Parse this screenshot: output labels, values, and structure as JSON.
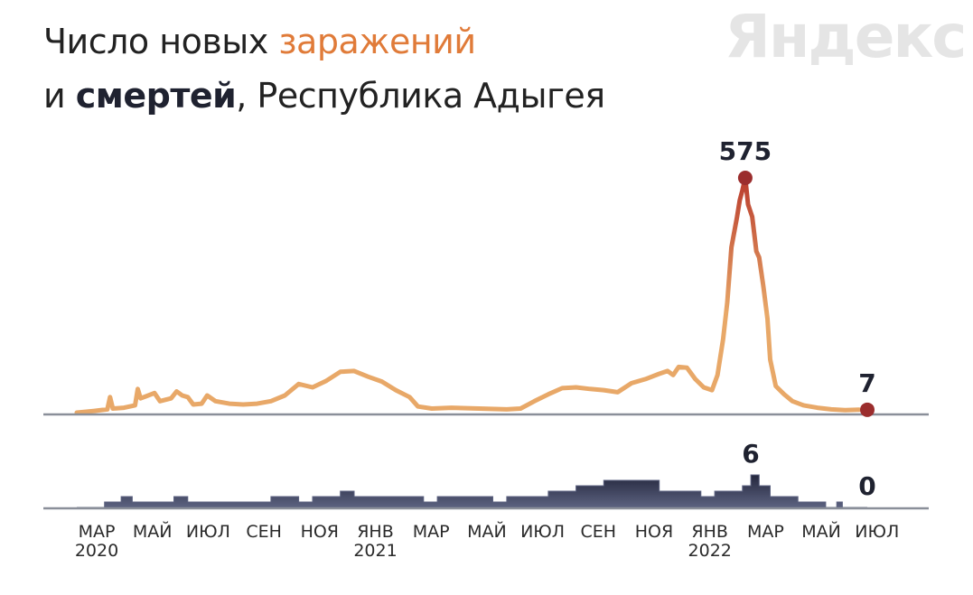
{
  "header": {
    "line1_prefix": "Число новых ",
    "line1_accent": "заражений",
    "line2_prefix": "и ",
    "line2_bold": "смертей",
    "line2_suffix": ", Республика Адыгея"
  },
  "logo": {
    "text": "Яндекс"
  },
  "colors": {
    "infections_low": "#e8a868",
    "infections_high": "#b93a2c",
    "peak_dot": "#9b2d2d",
    "deaths_fill": "#5c6280",
    "deaths_dark": "#1e2136",
    "axis": "#8a8f99"
  },
  "chart_data": [
    {
      "type": "line",
      "name": "infections",
      "title": "Число новых заражений",
      "x_ticks": [
        {
          "month": "МАР",
          "year": "2020"
        },
        {
          "month": "МАЙ",
          "year": ""
        },
        {
          "month": "ИЮЛ",
          "year": ""
        },
        {
          "month": "СЕН",
          "year": ""
        },
        {
          "month": "НОЯ",
          "year": ""
        },
        {
          "month": "ЯНВ",
          "year": "2021"
        },
        {
          "month": "МАР",
          "year": ""
        },
        {
          "month": "МАЙ",
          "year": ""
        },
        {
          "month": "ИЮЛ",
          "year": ""
        },
        {
          "month": "СЕН",
          "year": ""
        },
        {
          "month": "НОЯ",
          "year": ""
        },
        {
          "month": "ЯНВ",
          "year": "2022"
        },
        {
          "month": "МАР",
          "year": ""
        },
        {
          "month": "МАЙ",
          "year": ""
        },
        {
          "month": "ИЮЛ",
          "year": ""
        }
      ],
      "x_range_months": [
        0,
        28.5
      ],
      "y_range": [
        0,
        575
      ],
      "points": [
        [
          0,
          0
        ],
        [
          0.6,
          4
        ],
        [
          1.1,
          8
        ],
        [
          1.2,
          38
        ],
        [
          1.3,
          10
        ],
        [
          1.7,
          12
        ],
        [
          2.1,
          18
        ],
        [
          2.2,
          58
        ],
        [
          2.3,
          35
        ],
        [
          2.5,
          40
        ],
        [
          2.8,
          48
        ],
        [
          3.0,
          28
        ],
        [
          3.4,
          35
        ],
        [
          3.6,
          52
        ],
        [
          3.8,
          42
        ],
        [
          4.0,
          38
        ],
        [
          4.2,
          20
        ],
        [
          4.5,
          22
        ],
        [
          4.7,
          42
        ],
        [
          5.0,
          28
        ],
        [
          5.5,
          22
        ],
        [
          6.0,
          20
        ],
        [
          6.5,
          22
        ],
        [
          7.0,
          28
        ],
        [
          7.5,
          42
        ],
        [
          8.0,
          70
        ],
        [
          8.5,
          62
        ],
        [
          9.0,
          78
        ],
        [
          9.5,
          100
        ],
        [
          10.0,
          102
        ],
        [
          10.5,
          88
        ],
        [
          11.0,
          76
        ],
        [
          11.5,
          55
        ],
        [
          12.0,
          38
        ],
        [
          12.3,
          15
        ],
        [
          12.8,
          10
        ],
        [
          13.5,
          12
        ],
        [
          14.5,
          10
        ],
        [
          15.5,
          8
        ],
        [
          16.0,
          10
        ],
        [
          16.5,
          28
        ],
        [
          17.0,
          45
        ],
        [
          17.5,
          60
        ],
        [
          18.0,
          62
        ],
        [
          18.5,
          58
        ],
        [
          19.0,
          55
        ],
        [
          19.5,
          50
        ],
        [
          20.0,
          72
        ],
        [
          20.5,
          82
        ],
        [
          21.0,
          95
        ],
        [
          21.3,
          102
        ],
        [
          21.5,
          92
        ],
        [
          21.7,
          112
        ],
        [
          22.0,
          110
        ],
        [
          22.3,
          82
        ],
        [
          22.6,
          62
        ],
        [
          22.9,
          55
        ],
        [
          23.1,
          92
        ],
        [
          23.3,
          180
        ],
        [
          23.45,
          270
        ],
        [
          23.6,
          405
        ],
        [
          23.8,
          478
        ],
        [
          23.9,
          520
        ],
        [
          24.0,
          545
        ],
        [
          24.1,
          575
        ],
        [
          24.2,
          510
        ],
        [
          24.35,
          480
        ],
        [
          24.5,
          395
        ],
        [
          24.6,
          380
        ],
        [
          24.75,
          310
        ],
        [
          24.9,
          230
        ],
        [
          25.0,
          130
        ],
        [
          25.2,
          65
        ],
        [
          25.5,
          45
        ],
        [
          25.8,
          28
        ],
        [
          26.2,
          18
        ],
        [
          26.7,
          12
        ],
        [
          27.2,
          8
        ],
        [
          27.7,
          6
        ],
        [
          28.2,
          7
        ]
      ],
      "labels": [
        {
          "text": "575",
          "value": 575,
          "at_month": 24.1,
          "kind": "peak"
        },
        {
          "text": "7",
          "value": 7,
          "at_month": 28.5,
          "kind": "last"
        }
      ]
    },
    {
      "type": "area",
      "name": "deaths",
      "title": "смертей",
      "y_range": [
        0,
        6
      ],
      "points": [
        [
          0,
          0
        ],
        [
          0.8,
          0
        ],
        [
          1.0,
          1
        ],
        [
          1.5,
          1
        ],
        [
          1.6,
          2
        ],
        [
          2.0,
          1
        ],
        [
          2.5,
          1
        ],
        [
          3.0,
          1
        ],
        [
          3.5,
          2
        ],
        [
          4.0,
          1
        ],
        [
          4.5,
          1
        ],
        [
          5.0,
          1
        ],
        [
          5.5,
          1
        ],
        [
          6.0,
          1
        ],
        [
          6.5,
          1
        ],
        [
          7.0,
          2
        ],
        [
          7.5,
          2
        ],
        [
          8.0,
          1
        ],
        [
          8.5,
          2
        ],
        [
          9.0,
          2
        ],
        [
          9.5,
          3
        ],
        [
          10.0,
          2
        ],
        [
          10.5,
          2
        ],
        [
          11.0,
          2
        ],
        [
          11.5,
          2
        ],
        [
          12.0,
          2
        ],
        [
          12.5,
          1
        ],
        [
          13.0,
          2
        ],
        [
          13.5,
          2
        ],
        [
          14.0,
          2
        ],
        [
          14.5,
          2
        ],
        [
          15.0,
          1
        ],
        [
          15.5,
          2
        ],
        [
          16.0,
          2
        ],
        [
          16.5,
          2
        ],
        [
          17.0,
          3
        ],
        [
          17.5,
          3
        ],
        [
          18.0,
          4
        ],
        [
          18.5,
          4
        ],
        [
          19.0,
          5
        ],
        [
          19.5,
          5
        ],
        [
          20.0,
          5
        ],
        [
          20.5,
          5
        ],
        [
          20.8,
          5
        ],
        [
          21.0,
          3
        ],
        [
          21.5,
          3
        ],
        [
          22.0,
          3
        ],
        [
          22.5,
          2
        ],
        [
          23.0,
          3
        ],
        [
          23.5,
          3
        ],
        [
          24.0,
          4
        ],
        [
          24.3,
          6
        ],
        [
          24.6,
          4
        ],
        [
          25.0,
          2
        ],
        [
          25.5,
          2
        ],
        [
          26.0,
          1
        ],
        [
          26.5,
          1
        ],
        [
          27.0,
          0
        ],
        [
          27.4,
          1
        ],
        [
          27.6,
          0
        ],
        [
          28.5,
          0
        ]
      ],
      "labels": [
        {
          "text": "6",
          "value": 6,
          "at_month": 24.3,
          "kind": "peak"
        },
        {
          "text": "0",
          "value": 0,
          "at_month": 28.5,
          "kind": "last"
        }
      ]
    }
  ]
}
